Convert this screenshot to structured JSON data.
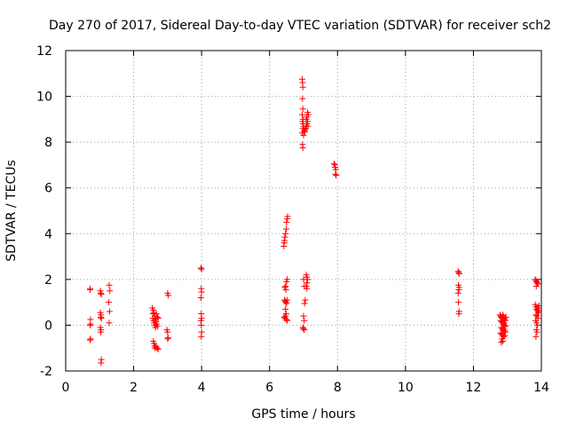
{
  "chart_data": {
    "type": "scatter",
    "title": "Day 270 of 2017, Sidereal Day-to-day VTEC variation (SDTVAR) for receiver sch2",
    "xlabel": "GPS time / hours",
    "ylabel": "SDTVAR / TECUs",
    "xlim": [
      0,
      14
    ],
    "ylim": [
      -2,
      12
    ],
    "xticks": [
      0,
      2,
      4,
      6,
      8,
      10,
      12,
      14
    ],
    "yticks": [
      -2,
      0,
      2,
      4,
      6,
      8,
      10,
      12
    ],
    "xtick_labels": [
      "0",
      "2",
      "4",
      "6",
      "8",
      "10",
      "12",
      "14"
    ],
    "ytick_labels": [
      "-2",
      "0",
      "2",
      "4",
      "6",
      "8",
      "10",
      "12"
    ],
    "grid": true,
    "marker": "+",
    "color": "#ff0000",
    "series": [
      {
        "name": "sch2",
        "points": [
          [
            0.72,
            1.6
          ],
          [
            0.72,
            1.55
          ],
          [
            0.73,
            0.25
          ],
          [
            0.73,
            0.05
          ],
          [
            0.72,
            0.0
          ],
          [
            0.73,
            -0.6
          ],
          [
            0.72,
            -0.65
          ],
          [
            1.02,
            1.5
          ],
          [
            1.03,
            1.4
          ],
          [
            1.05,
            1.35
          ],
          [
            1.02,
            0.55
          ],
          [
            1.04,
            0.45
          ],
          [
            1.03,
            0.35
          ],
          [
            1.05,
            0.3
          ],
          [
            1.02,
            -0.1
          ],
          [
            1.04,
            -0.2
          ],
          [
            1.03,
            -0.3
          ],
          [
            1.05,
            -1.5
          ],
          [
            1.04,
            -1.65
          ],
          [
            1.28,
            1.75
          ],
          [
            1.3,
            1.5
          ],
          [
            1.27,
            1.0
          ],
          [
            1.29,
            0.6
          ],
          [
            1.28,
            0.1
          ],
          [
            2.55,
            0.75
          ],
          [
            2.58,
            0.65
          ],
          [
            2.6,
            0.55
          ],
          [
            2.57,
            0.5
          ],
          [
            2.62,
            0.4
          ],
          [
            2.56,
            0.3
          ],
          [
            2.64,
            0.25
          ],
          [
            2.59,
            0.2
          ],
          [
            2.66,
            0.15
          ],
          [
            2.6,
            0.1
          ],
          [
            2.68,
            0.05
          ],
          [
            2.62,
            0.0
          ],
          [
            2.7,
            -0.05
          ],
          [
            2.64,
            -0.1
          ],
          [
            2.58,
            -0.7
          ],
          [
            2.6,
            -0.8
          ],
          [
            2.63,
            -0.9
          ],
          [
            2.66,
            -0.95
          ],
          [
            2.69,
            -1.0
          ],
          [
            2.72,
            -1.05
          ],
          [
            2.62,
            -1.0
          ],
          [
            2.7,
            0.35
          ],
          [
            2.67,
            0.5
          ],
          [
            2.72,
            0.3
          ],
          [
            3.0,
            1.4
          ],
          [
            3.02,
            1.3
          ],
          [
            2.98,
            -0.2
          ],
          [
            3.0,
            -0.3
          ],
          [
            3.02,
            -0.55
          ],
          [
            3.0,
            -0.6
          ],
          [
            3.98,
            2.5
          ],
          [
            4.0,
            2.45
          ],
          [
            3.99,
            1.6
          ],
          [
            4.0,
            1.45
          ],
          [
            3.98,
            1.2
          ],
          [
            3.99,
            0.5
          ],
          [
            4.0,
            0.3
          ],
          [
            3.98,
            0.2
          ],
          [
            3.99,
            0.0
          ],
          [
            4.0,
            -0.3
          ],
          [
            3.99,
            -0.5
          ],
          [
            6.42,
            3.45
          ],
          [
            6.43,
            3.6
          ],
          [
            6.44,
            3.7
          ],
          [
            6.45,
            3.85
          ],
          [
            6.47,
            4.0
          ],
          [
            6.49,
            4.2
          ],
          [
            6.5,
            4.5
          ],
          [
            6.52,
            4.65
          ],
          [
            6.53,
            4.75
          ],
          [
            6.45,
            1.65
          ],
          [
            6.47,
            1.7
          ],
          [
            6.5,
            1.9
          ],
          [
            6.52,
            2.0
          ],
          [
            6.48,
            1.55
          ],
          [
            6.44,
            1.1
          ],
          [
            6.46,
            1.05
          ],
          [
            6.48,
            1.0
          ],
          [
            6.5,
            0.95
          ],
          [
            6.52,
            1.1
          ],
          [
            6.47,
            0.7
          ],
          [
            6.49,
            0.5
          ],
          [
            6.43,
            0.35
          ],
          [
            6.45,
            0.3
          ],
          [
            6.47,
            0.4
          ],
          [
            6.5,
            0.25
          ],
          [
            6.52,
            0.2
          ],
          [
            6.96,
            10.75
          ],
          [
            6.97,
            10.6
          ],
          [
            6.98,
            10.4
          ],
          [
            6.97,
            9.9
          ],
          [
            6.98,
            9.45
          ],
          [
            6.96,
            9.2
          ],
          [
            6.99,
            9.0
          ],
          [
            6.97,
            8.9
          ],
          [
            6.99,
            8.8
          ],
          [
            7.0,
            8.7
          ],
          [
            6.98,
            8.6
          ],
          [
            7.02,
            8.5
          ],
          [
            6.96,
            8.4
          ],
          [
            7.04,
            8.45
          ],
          [
            7.06,
            8.6
          ],
          [
            7.08,
            8.7
          ],
          [
            7.1,
            8.8
          ],
          [
            7.12,
            8.9
          ],
          [
            7.1,
            9.1
          ],
          [
            7.12,
            9.3
          ],
          [
            7.08,
            9.0
          ],
          [
            7.14,
            9.2
          ],
          [
            6.97,
            7.9
          ],
          [
            6.98,
            7.75
          ],
          [
            7.0,
            8.3
          ],
          [
            7.05,
            8.55
          ],
          [
            7.13,
            8.7
          ],
          [
            7.0,
            2.0
          ],
          [
            7.02,
            1.7
          ],
          [
            7.05,
            1.1
          ],
          [
            7.03,
            0.95
          ],
          [
            7.0,
            0.4
          ],
          [
            7.02,
            0.2
          ],
          [
            6.98,
            -0.1
          ],
          [
            7.0,
            -0.15
          ],
          [
            7.02,
            -0.2
          ],
          [
            7.08,
            2.2
          ],
          [
            7.1,
            2.1
          ],
          [
            7.12,
            2.0
          ],
          [
            7.1,
            1.85
          ],
          [
            7.08,
            1.7
          ],
          [
            7.1,
            1.6
          ],
          [
            7.9,
            7.05
          ],
          [
            7.92,
            7.0
          ],
          [
            7.93,
            6.9
          ],
          [
            7.95,
            6.8
          ],
          [
            7.94,
            6.6
          ],
          [
            7.96,
            6.55
          ],
          [
            11.55,
            2.35
          ],
          [
            11.57,
            2.3
          ],
          [
            11.58,
            2.25
          ],
          [
            11.56,
            1.75
          ],
          [
            11.58,
            1.65
          ],
          [
            11.57,
            1.55
          ],
          [
            11.55,
            1.4
          ],
          [
            11.56,
            1.0
          ],
          [
            11.58,
            0.6
          ],
          [
            11.57,
            0.5
          ],
          [
            12.78,
            0.45
          ],
          [
            12.8,
            0.4
          ],
          [
            12.82,
            0.35
          ],
          [
            12.84,
            0.3
          ],
          [
            12.86,
            0.45
          ],
          [
            12.88,
            0.4
          ],
          [
            12.9,
            0.3
          ],
          [
            12.92,
            0.25
          ],
          [
            12.94,
            0.2
          ],
          [
            12.8,
            0.2
          ],
          [
            12.83,
            0.15
          ],
          [
            12.86,
            0.1
          ],
          [
            12.89,
            0.05
          ],
          [
            12.92,
            0.0
          ],
          [
            12.95,
            -0.05
          ],
          [
            12.82,
            -0.1
          ],
          [
            12.85,
            -0.15
          ],
          [
            12.88,
            -0.2
          ],
          [
            12.91,
            -0.25
          ],
          [
            12.94,
            -0.3
          ],
          [
            12.8,
            -0.35
          ],
          [
            12.83,
            -0.4
          ],
          [
            12.86,
            -0.45
          ],
          [
            12.89,
            -0.5
          ],
          [
            12.92,
            -0.45
          ],
          [
            12.84,
            -0.6
          ],
          [
            12.82,
            -0.75
          ],
          [
            12.86,
            -0.7
          ],
          [
            12.9,
            0.1
          ],
          [
            12.96,
            0.35
          ],
          [
            13.82,
            2.0
          ],
          [
            13.84,
            1.95
          ],
          [
            13.86,
            1.9
          ],
          [
            13.88,
            1.85
          ],
          [
            13.9,
            1.8
          ],
          [
            13.85,
            1.7
          ],
          [
            13.82,
            0.9
          ],
          [
            13.84,
            0.8
          ],
          [
            13.86,
            0.7
          ],
          [
            13.88,
            0.65
          ],
          [
            13.9,
            0.6
          ],
          [
            13.92,
            0.55
          ],
          [
            13.84,
            0.45
          ],
          [
            13.87,
            0.4
          ],
          [
            13.9,
            0.3
          ],
          [
            13.83,
            0.2
          ],
          [
            13.86,
            0.1
          ],
          [
            13.88,
            0.0
          ],
          [
            13.85,
            -0.2
          ],
          [
            13.87,
            -0.3
          ],
          [
            13.84,
            -0.5
          ],
          [
            13.9,
            0.75
          ],
          [
            13.93,
            0.85
          ]
        ]
      }
    ]
  }
}
